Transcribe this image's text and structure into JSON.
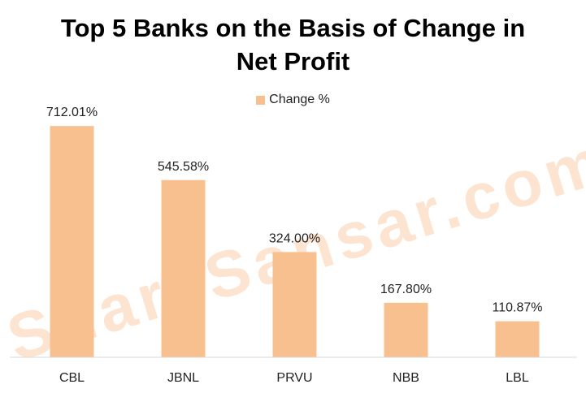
{
  "chart_data": {
    "type": "bar",
    "title": "Top 5 Banks on the Basis of Change in\nNet Profit",
    "categories": [
      "CBL",
      "JBNL",
      "PRVU",
      "NBB",
      "LBL"
    ],
    "series": [
      {
        "name": "Change %",
        "values": [
          712.01,
          545.58,
          324.0,
          167.8,
          110.87
        ],
        "labels": [
          "712.01%",
          "545.58%",
          "324.00%",
          "167.80%",
          "110.87%"
        ]
      }
    ],
    "ylim": [
      0,
      800
    ],
    "grid": false,
    "legend": "top-center",
    "xlabel": "",
    "ylabel": "",
    "bar_color": "#F8C08F",
    "axis_color": "#D9D9D9"
  },
  "watermark": {
    "text": "ShareSansar.com",
    "color": "#FCE4D1"
  }
}
